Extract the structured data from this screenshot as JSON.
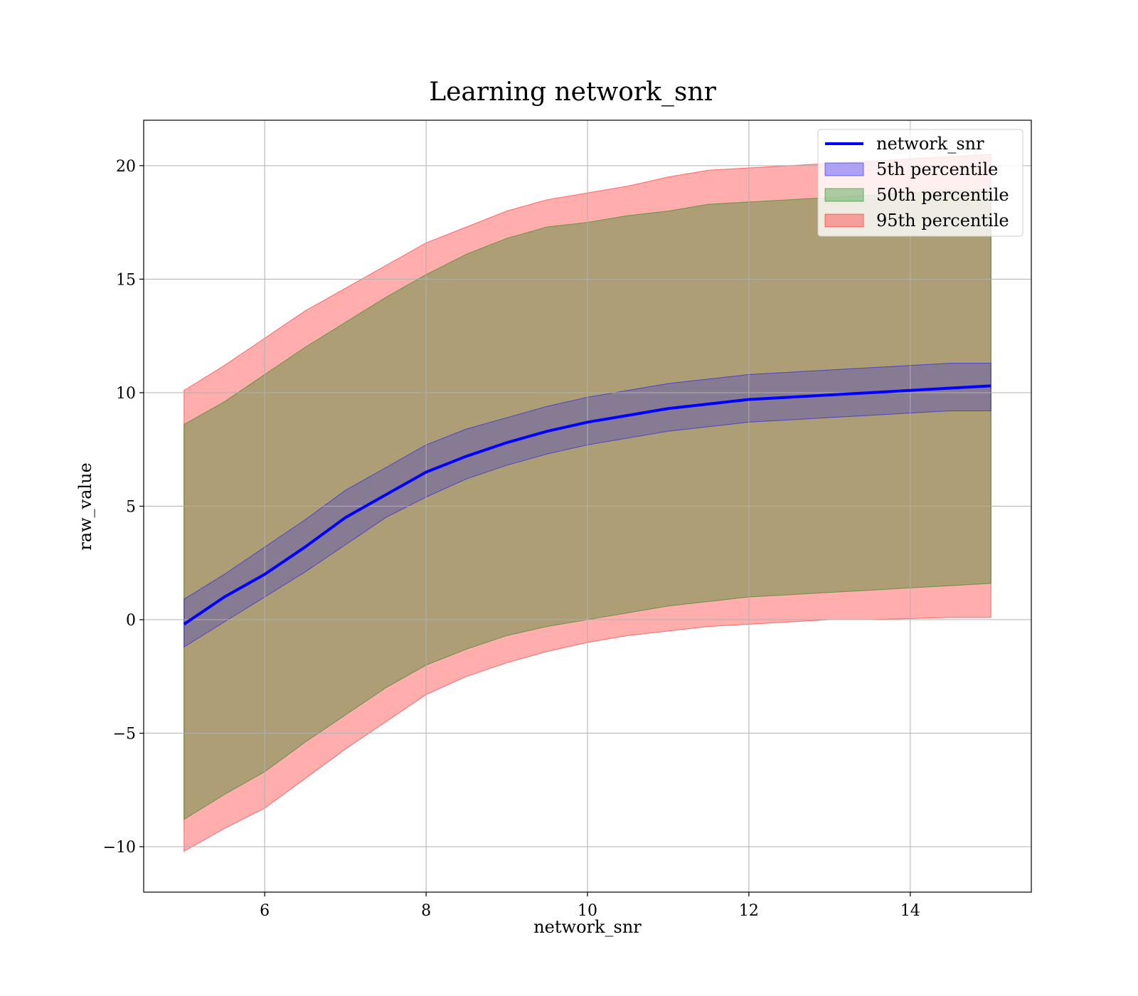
{
  "chart_data": {
    "type": "area",
    "title": "Learning network_snr",
    "xlabel": "network_snr",
    "ylabel": "raw_value",
    "xlim": [
      4.5,
      15.5
    ],
    "ylim": [
      -12,
      22
    ],
    "xticks": [
      6,
      8,
      10,
      12,
      14
    ],
    "yticks": [
      -10,
      -5,
      0,
      5,
      10,
      15,
      20
    ],
    "xtick_labels": [
      "6",
      "8",
      "10",
      "12",
      "14"
    ],
    "ytick_labels": [
      "−10",
      "−5",
      "0",
      "5",
      "10",
      "15",
      "20"
    ],
    "grid": true,
    "legend_position": "top-right",
    "legend": [
      {
        "label": "network_snr",
        "kind": "line",
        "color": "#0000ff"
      },
      {
        "label": "5th percentile",
        "kind": "patch",
        "color": "#0000ff"
      },
      {
        "label": "50th percentile",
        "kind": "patch",
        "color": "#008000"
      },
      {
        "label": "95th percentile",
        "kind": "patch",
        "color": "#ff0000"
      }
    ],
    "x": [
      5.0,
      5.5,
      6.0,
      6.5,
      7.0,
      7.5,
      8.0,
      8.5,
      9.0,
      9.5,
      10.0,
      10.5,
      11.0,
      11.5,
      12.0,
      12.5,
      13.0,
      13.5,
      14.0,
      14.5,
      15.0
    ],
    "median_line": {
      "name": "network_snr",
      "color": "#0000ff",
      "values": [
        -0.2,
        1.0,
        2.0,
        3.2,
        4.5,
        5.5,
        6.5,
        7.2,
        7.8,
        8.3,
        8.7,
        9.0,
        9.3,
        9.5,
        9.7,
        9.8,
        9.9,
        10.0,
        10.1,
        10.2,
        10.3
      ]
    },
    "bands": [
      {
        "name": "95th percentile",
        "color": "#ff0000",
        "opacity": 0.32,
        "lower": [
          -10.2,
          -9.2,
          -8.3,
          -7.0,
          -5.7,
          -4.5,
          -3.3,
          -2.5,
          -1.9,
          -1.4,
          -1.0,
          -0.7,
          -0.5,
          -0.3,
          -0.2,
          -0.1,
          0.0,
          0.0,
          0.05,
          0.1,
          0.1
        ],
        "upper": [
          10.1,
          11.2,
          12.4,
          13.6,
          14.6,
          15.6,
          16.6,
          17.3,
          18.0,
          18.5,
          18.8,
          19.1,
          19.5,
          19.8,
          19.9,
          20.0,
          20.1,
          20.2,
          20.3,
          20.4,
          20.5
        ]
      },
      {
        "name": "50th percentile",
        "color": "#008000",
        "opacity": 0.32,
        "lower": [
          -8.8,
          -7.7,
          -6.7,
          -5.4,
          -4.2,
          -3.0,
          -2.0,
          -1.3,
          -0.7,
          -0.3,
          0.0,
          0.3,
          0.6,
          0.8,
          1.0,
          1.1,
          1.2,
          1.3,
          1.4,
          1.5,
          1.6
        ],
        "upper": [
          8.6,
          9.6,
          10.8,
          12.0,
          13.1,
          14.2,
          15.2,
          16.1,
          16.8,
          17.3,
          17.5,
          17.8,
          18.0,
          18.3,
          18.4,
          18.5,
          18.6,
          18.7,
          18.8,
          18.9,
          18.9
        ]
      },
      {
        "name": "5th percentile",
        "color": "#0000ff",
        "opacity": 0.22,
        "lower": [
          -1.2,
          -0.1,
          1.0,
          2.1,
          3.3,
          4.5,
          5.4,
          6.2,
          6.8,
          7.3,
          7.7,
          8.0,
          8.3,
          8.5,
          8.7,
          8.8,
          8.9,
          9.0,
          9.1,
          9.2,
          9.2
        ],
        "upper": [
          0.9,
          2.0,
          3.2,
          4.4,
          5.7,
          6.7,
          7.7,
          8.4,
          8.9,
          9.4,
          9.8,
          10.1,
          10.4,
          10.6,
          10.8,
          10.9,
          11.0,
          11.1,
          11.2,
          11.3,
          11.3
        ]
      }
    ]
  }
}
